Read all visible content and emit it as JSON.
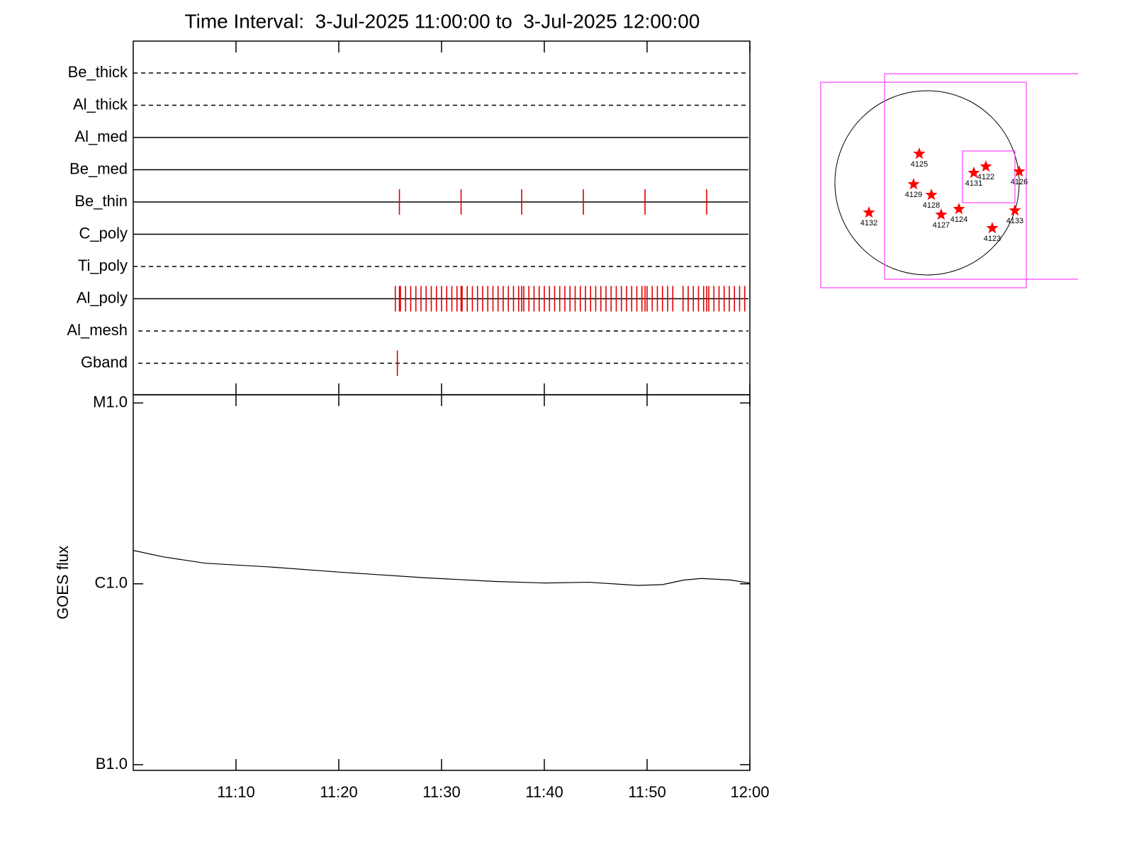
{
  "title": "Time Interval:  3-Jul-2025 11:00:00 to  3-Jul-2025 12:00:00",
  "chart_data": [
    {
      "type": "timeline",
      "categories": [
        "Be_thick",
        "Al_thick",
        "Al_med",
        "Be_med",
        "Be_thin",
        "C_poly",
        "Ti_poly",
        "Al_poly",
        "Al_mesh",
        "Gband"
      ],
      "styles": [
        "dashed",
        "dashed",
        "solid",
        "solid",
        "solid",
        "solid",
        "dashed",
        "solid",
        "dashed",
        "dashed"
      ],
      "color": "#e00000",
      "xlim": [
        0,
        60
      ],
      "events": [
        [],
        [],
        [],
        [],
        [
          25.9,
          31.9,
          37.8,
          43.8,
          49.8,
          55.8
        ],
        [],
        [],
        [
          25.5,
          25.9,
          26.0,
          26.5,
          27.0,
          27.5,
          28.0,
          28.5,
          29.0,
          29.5,
          30.0,
          30.5,
          31.0,
          31.5,
          31.9,
          32.0,
          32.5,
          33.0,
          33.5,
          34.0,
          34.5,
          35.0,
          35.5,
          36.0,
          36.5,
          37.0,
          37.5,
          37.8,
          38.0,
          38.5,
          39.0,
          39.5,
          40.0,
          40.5,
          41.0,
          41.5,
          42.0,
          42.5,
          43.0,
          43.5,
          44.0,
          44.5,
          45.0,
          45.5,
          46.0,
          46.5,
          47.0,
          47.5,
          48.0,
          48.5,
          49.0,
          49.5,
          49.8,
          50.0,
          50.5,
          51.0,
          51.5,
          52.0,
          52.5,
          53.5,
          54.0,
          54.5,
          55.0,
          55.5,
          55.8,
          56.0,
          56.5,
          57.0,
          57.5,
          58.0,
          58.5,
          59.0,
          59.5
        ],
        [],
        [
          25.7
        ]
      ]
    },
    {
      "type": "line",
      "y_label": "GOES flux",
      "x": [
        0,
        2.9,
        7,
        13.2,
        20.1,
        28.4,
        35.3,
        40.1,
        44.3,
        49.1,
        51.5,
        53.6,
        55.3,
        58.1,
        60
      ],
      "series": [
        {
          "color": "#000000",
          "values": [
            1.53e-06,
            1.41e-06,
            1.3e-06,
            1.24e-06,
            1.16e-06,
            1.08e-06,
            1.03e-06,
            1.01e-06,
            1.02e-06,
            9.8e-07,
            9.9e-07,
            1.05e-06,
            1.07e-06,
            1.05e-06,
            1.01e-06
          ]
        }
      ],
      "xlim": [
        0,
        60
      ],
      "xticks": [
        {
          "value": 10,
          "label": "11:10"
        },
        {
          "value": 20,
          "label": "11:20"
        },
        {
          "value": 30,
          "label": "11:30"
        },
        {
          "value": 40,
          "label": "11:40"
        },
        {
          "value": 50,
          "label": "11:50"
        },
        {
          "value": 60,
          "label": "12:00"
        }
      ],
      "ylim": [
        9.3e-08,
        1.11e-05
      ],
      "ylog": true,
      "yticks": [
        {
          "value": 1e-05,
          "label": "M1.0"
        },
        {
          "value": 1e-06,
          "label": "C1.0"
        },
        {
          "value": 1e-07,
          "label": "B1.0"
        }
      ]
    },
    {
      "type": "scatter",
      "color": "#ff0000",
      "labels": [
        "4125",
        "4122",
        "4131",
        "4126",
        "4129",
        "4128",
        "4124",
        "4127",
        "4133",
        "4132",
        "4123"
      ],
      "x": [
        -80,
        603,
        480,
        945,
        -138,
        44,
        327,
        145,
        901,
        -596,
        669
      ],
      "values": [
        298,
        167,
        102,
        116,
        -15,
        -124,
        -269,
        -327,
        -284,
        -305,
        -465
      ]
    }
  ]
}
